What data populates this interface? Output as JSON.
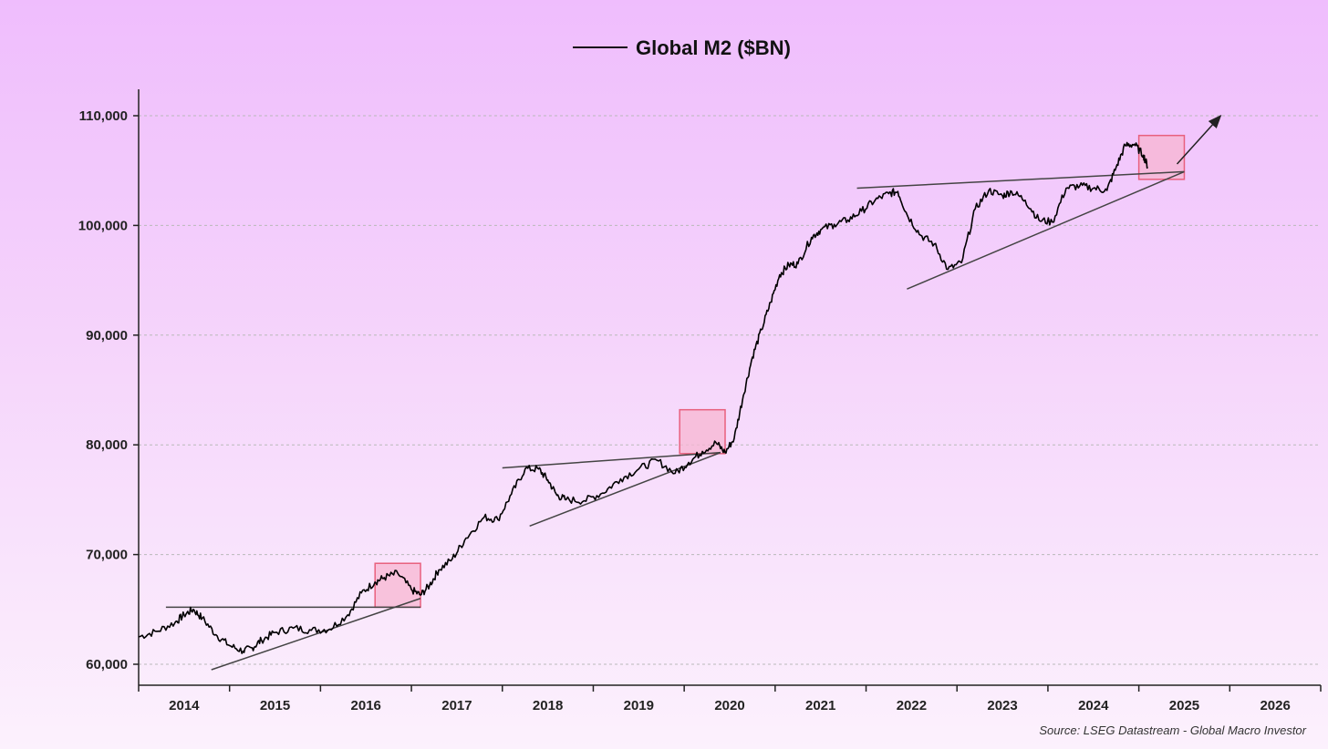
{
  "chart_data": {
    "type": "line",
    "title": "",
    "legend": {
      "label": "Global M2 ($BN)",
      "placement": "top-center"
    },
    "source": "Source: LSEG Datastream - Global Macro Investor",
    "xlabel": "",
    "ylabel": "",
    "ylim": [
      58000,
      110000
    ],
    "xlim": [
      2013.5,
      2026.5
    ],
    "y_ticks": [
      {
        "value": 60000,
        "label": "60,000"
      },
      {
        "value": 70000,
        "label": "70,000"
      },
      {
        "value": 80000,
        "label": "80,000"
      },
      {
        "value": 90000,
        "label": "90,000"
      },
      {
        "value": 100000,
        "label": "100,000"
      },
      {
        "value": 110000,
        "label": "110,000"
      }
    ],
    "x_ticks": [
      "2014",
      "2015",
      "2016",
      "2017",
      "2018",
      "2019",
      "2020",
      "2021",
      "2022",
      "2023",
      "2024",
      "2025",
      "2026"
    ],
    "grid": "horizontal-dashed",
    "colors": {
      "line": "#000000",
      "trendline": "#444444",
      "highlight_fill": "#f7b6d2",
      "highlight_stroke": "#e8607e",
      "grid": "#b9b9b9"
    },
    "series": [
      {
        "name": "Global M2 ($BN)",
        "x": [
          2013.5,
          2013.7,
          2013.9,
          2014.0,
          2014.1,
          2014.2,
          2014.35,
          2014.5,
          2014.65,
          2014.75,
          2014.85,
          2015.0,
          2015.2,
          2015.4,
          2015.6,
          2015.8,
          2015.95,
          2016.1,
          2016.2,
          2016.35,
          2016.5,
          2016.6,
          2016.7,
          2016.8,
          2016.95,
          2017.1,
          2017.3,
          2017.45,
          2017.6,
          2017.75,
          2017.9,
          2018.0,
          2018.1,
          2018.2,
          2018.4,
          2018.6,
          2018.8,
          2019.0,
          2019.2,
          2019.4,
          2019.55,
          2019.7,
          2019.85,
          2019.95,
          2020.05,
          2020.15,
          2020.25,
          2020.35,
          2020.45,
          2020.55,
          2020.65,
          2020.75,
          2020.9,
          2021.0,
          2021.15,
          2021.3,
          2021.45,
          2021.6,
          2021.75,
          2021.85,
          2021.95,
          2022.1,
          2022.25,
          2022.4,
          2022.55,
          2022.7,
          2022.85,
          2023.0,
          2023.1,
          2023.25,
          2023.4,
          2023.55,
          2023.7,
          2023.85,
          2024.0,
          2024.15,
          2024.25,
          2024.35,
          2024.45,
          2024.55,
          2024.6
        ],
        "values": [
          62500,
          63000,
          63800,
          64500,
          65000,
          64200,
          62700,
          61700,
          61200,
          61500,
          62200,
          62900,
          63300,
          63100,
          63200,
          64500,
          66500,
          67500,
          67900,
          68300,
          66800,
          66300,
          67200,
          68600,
          69600,
          71500,
          73400,
          73200,
          75500,
          77800,
          77800,
          76800,
          75400,
          75000,
          74900,
          75600,
          76900,
          77800,
          78600,
          77400,
          78400,
          79400,
          80200,
          79300,
          80600,
          84500,
          88000,
          90500,
          93000,
          95500,
          96400,
          96500,
          98900,
          99600,
          100100,
          100500,
          101300,
          102300,
          102900,
          103100,
          101000,
          99100,
          98300,
          96000,
          96600,
          101500,
          103200,
          102700,
          103100,
          102300,
          100500,
          100300,
          103400,
          103600,
          103400,
          103200,
          105300,
          107300,
          107400,
          106400,
          105300
        ]
      }
    ],
    "trendlines": [
      {
        "x1": 2013.8,
        "y1": 65200,
        "x2": 2016.6,
        "y2": 65200
      },
      {
        "x1": 2014.3,
        "y1": 59500,
        "x2": 2016.6,
        "y2": 66000
      },
      {
        "x1": 2017.5,
        "y1": 77900,
        "x2": 2019.9,
        "y2": 79300
      },
      {
        "x1": 2017.8,
        "y1": 72600,
        "x2": 2019.9,
        "y2": 79300
      },
      {
        "x1": 2021.4,
        "y1": 103400,
        "x2": 2025.0,
        "y2": 104900
      },
      {
        "x1": 2021.95,
        "y1": 94200,
        "x2": 2025.0,
        "y2": 104900
      }
    ],
    "arrow": {
      "x1": 2024.92,
      "y1": 105600,
      "x2": 2025.4,
      "y2": 110000
    },
    "highlight_boxes": [
      {
        "x1": 2016.1,
        "y1": 65200,
        "x2": 2016.6,
        "y2": 69200
      },
      {
        "x1": 2019.45,
        "y1": 79200,
        "x2": 2019.95,
        "y2": 83200
      },
      {
        "x1": 2024.5,
        "y1": 104200,
        "x2": 2025.0,
        "y2": 108200
      }
    ]
  }
}
